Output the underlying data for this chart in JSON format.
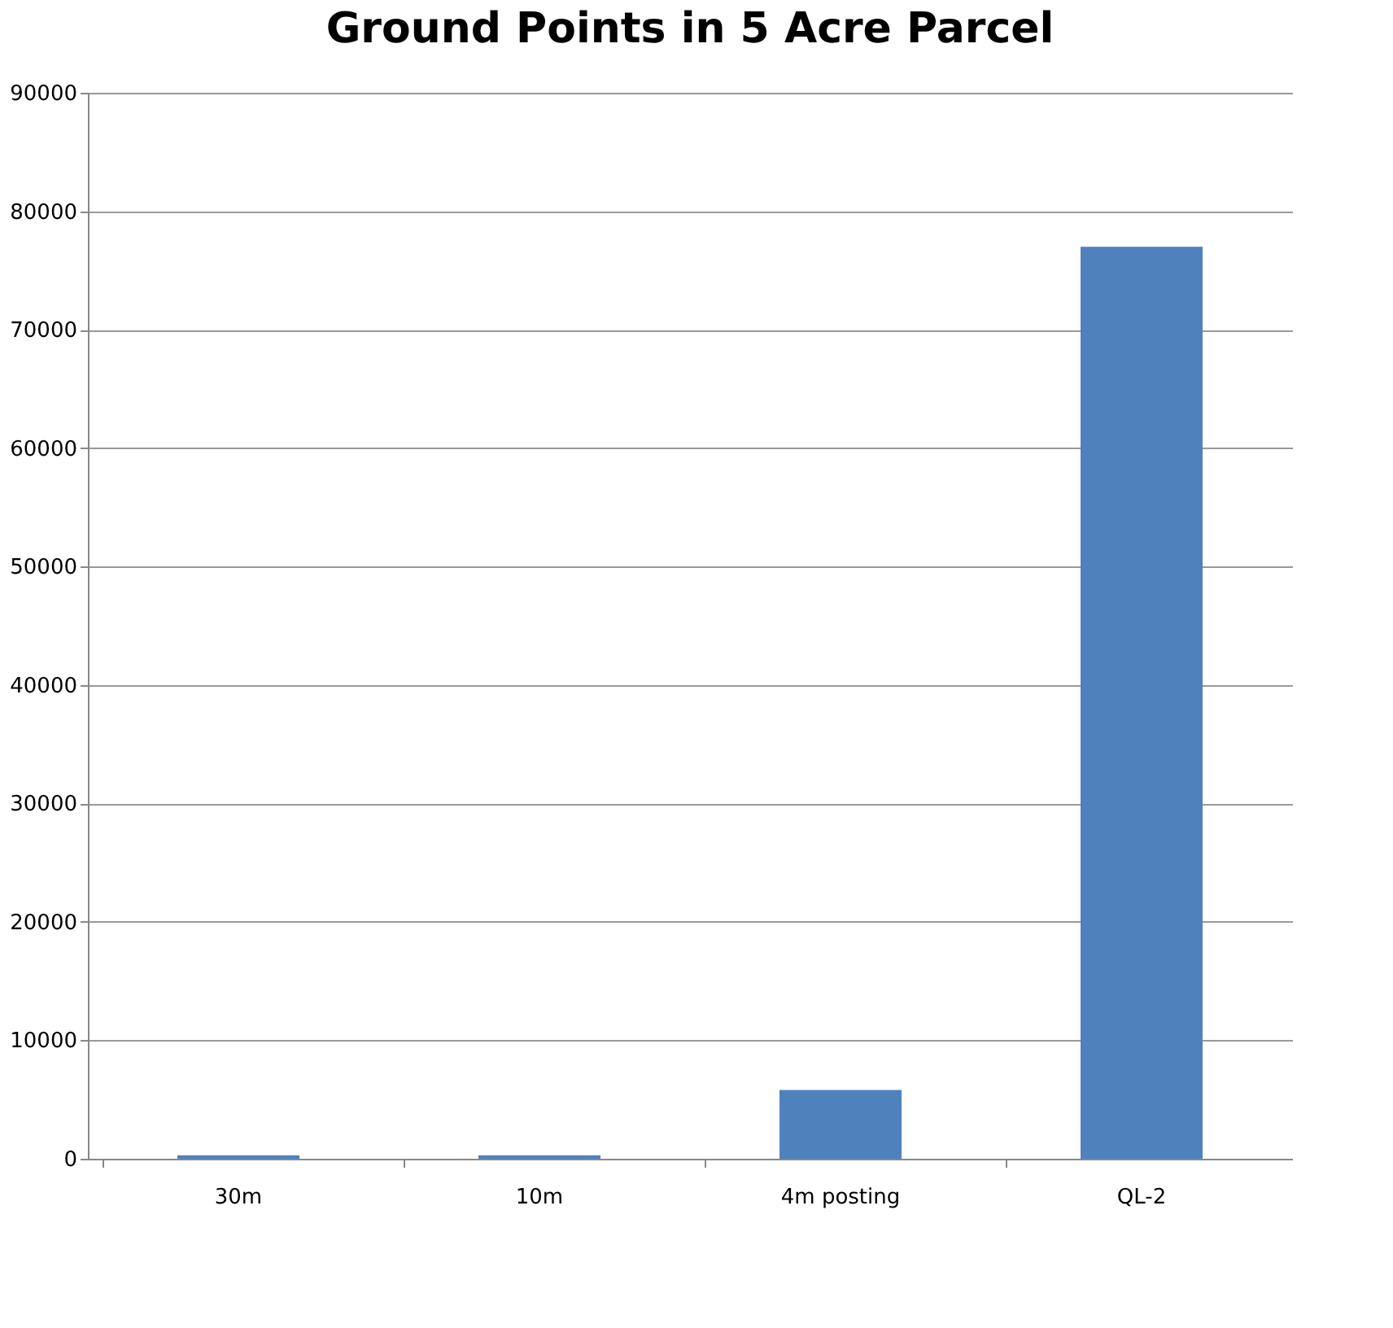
{
  "chart_data": {
    "type": "bar",
    "title": "Ground Points in 5 Acre Parcel",
    "categories": [
      "30m",
      "10m",
      "4m posting",
      "QL-2"
    ],
    "values": [
      300,
      300,
      5800,
      77000
    ],
    "color": "#4f81bd",
    "ylim": [
      0,
      90000
    ],
    "yticks": [
      0,
      10000,
      20000,
      30000,
      40000,
      50000,
      60000,
      70000,
      80000,
      90000
    ],
    "grid": "y"
  }
}
